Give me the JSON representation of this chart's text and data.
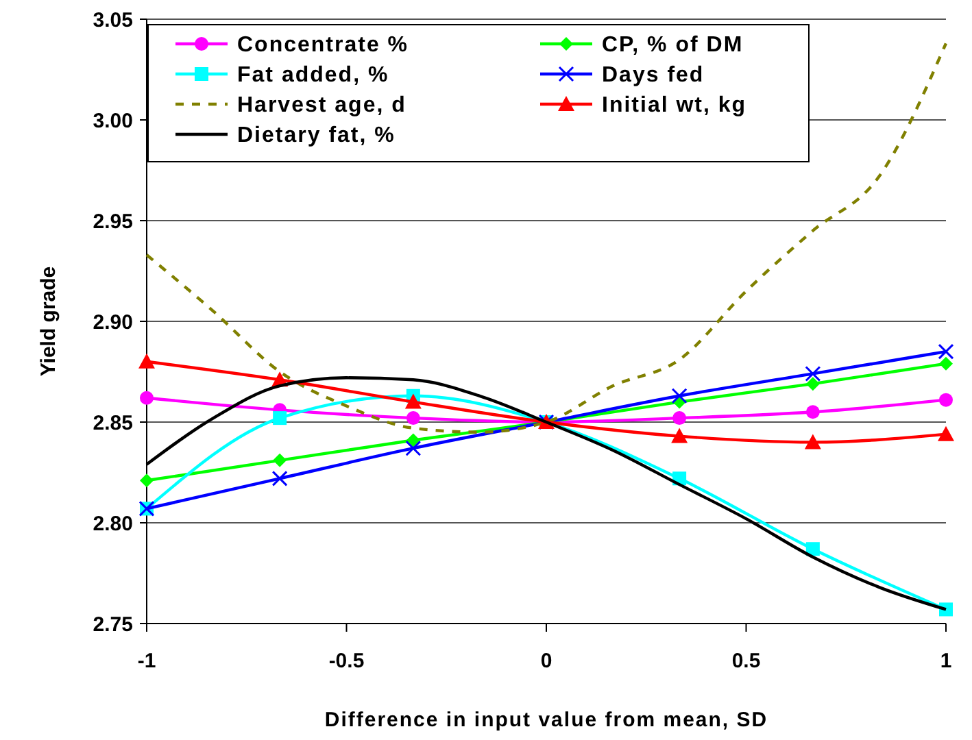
{
  "chart_data": {
    "type": "line",
    "xlabel": "Difference in input value from mean, SD",
    "ylabel": "Yield grade",
    "xlim": [
      -1,
      1
    ],
    "xticks": [
      -1,
      -0.5,
      0,
      0.5,
      1
    ],
    "ylim": [
      2.75,
      3.05
    ],
    "yticks": [
      {
        "value": 2.75,
        "label": "2.75"
      },
      {
        "value": 2.8,
        "label": "2.80"
      },
      {
        "value": 2.85,
        "label": "2.85"
      },
      {
        "value": 2.9,
        "label": "2.90"
      },
      {
        "value": 2.95,
        "label": "2.95"
      },
      {
        "value": 3.0,
        "label": "3.00"
      },
      {
        "value": 3.05,
        "label": "3.05"
      }
    ],
    "grid": "y",
    "legend": "top left",
    "x": [
      -1,
      -0.667,
      -0.333,
      0,
      0.333,
      0.667,
      1
    ],
    "series": [
      {
        "name": "Concentrate %",
        "color": "#ff00ff",
        "marker": "circle",
        "values": [
          2.862,
          2.856,
          2.852,
          2.85,
          2.852,
          2.855,
          2.861
        ]
      },
      {
        "name": "CP, % of DM",
        "color": "#00ff00",
        "marker": "diamond",
        "values": [
          2.821,
          2.831,
          2.841,
          2.85,
          2.86,
          2.869,
          2.879
        ]
      },
      {
        "name": "Fat added, %",
        "color": "#00ffff",
        "marker": "square",
        "values": [
          2.807,
          2.852,
          2.863,
          2.85,
          2.822,
          2.787,
          2.757
        ]
      },
      {
        "name": "Days fed",
        "color": "#0000ff",
        "marker": "cross",
        "values": [
          2.807,
          2.822,
          2.837,
          2.85,
          2.863,
          2.874,
          2.885
        ]
      },
      {
        "name": "Harvest age, d",
        "color": "#808000",
        "marker": "none",
        "line_style": "dashed",
        "x": [
          -1,
          -0.833,
          -0.667,
          -0.5,
          -0.333,
          -0.167,
          0,
          0.167,
          0.333,
          0.5,
          0.667,
          0.833,
          1
        ],
        "values": [
          2.933,
          2.905,
          2.875,
          2.858,
          2.847,
          2.845,
          2.85,
          2.868,
          2.881,
          2.915,
          2.945,
          2.972,
          3.038
        ]
      },
      {
        "name": "Initial wt, kg",
        "color": "#ff0000",
        "marker": "triangle",
        "values": [
          2.88,
          2.871,
          2.86,
          2.85,
          2.843,
          2.84,
          2.844
        ]
      },
      {
        "name": "Dietary fat, %",
        "color": "#000000",
        "marker": "none",
        "x": [
          -1,
          -0.833,
          -0.667,
          -0.5,
          -0.333,
          -0.167,
          0,
          0.167,
          0.333,
          0.5,
          0.667,
          0.833,
          1
        ],
        "values": [
          2.829,
          2.852,
          2.868,
          2.872,
          2.871,
          2.863,
          2.85,
          2.836,
          2.819,
          2.802,
          2.783,
          2.768,
          2.757
        ]
      }
    ]
  }
}
